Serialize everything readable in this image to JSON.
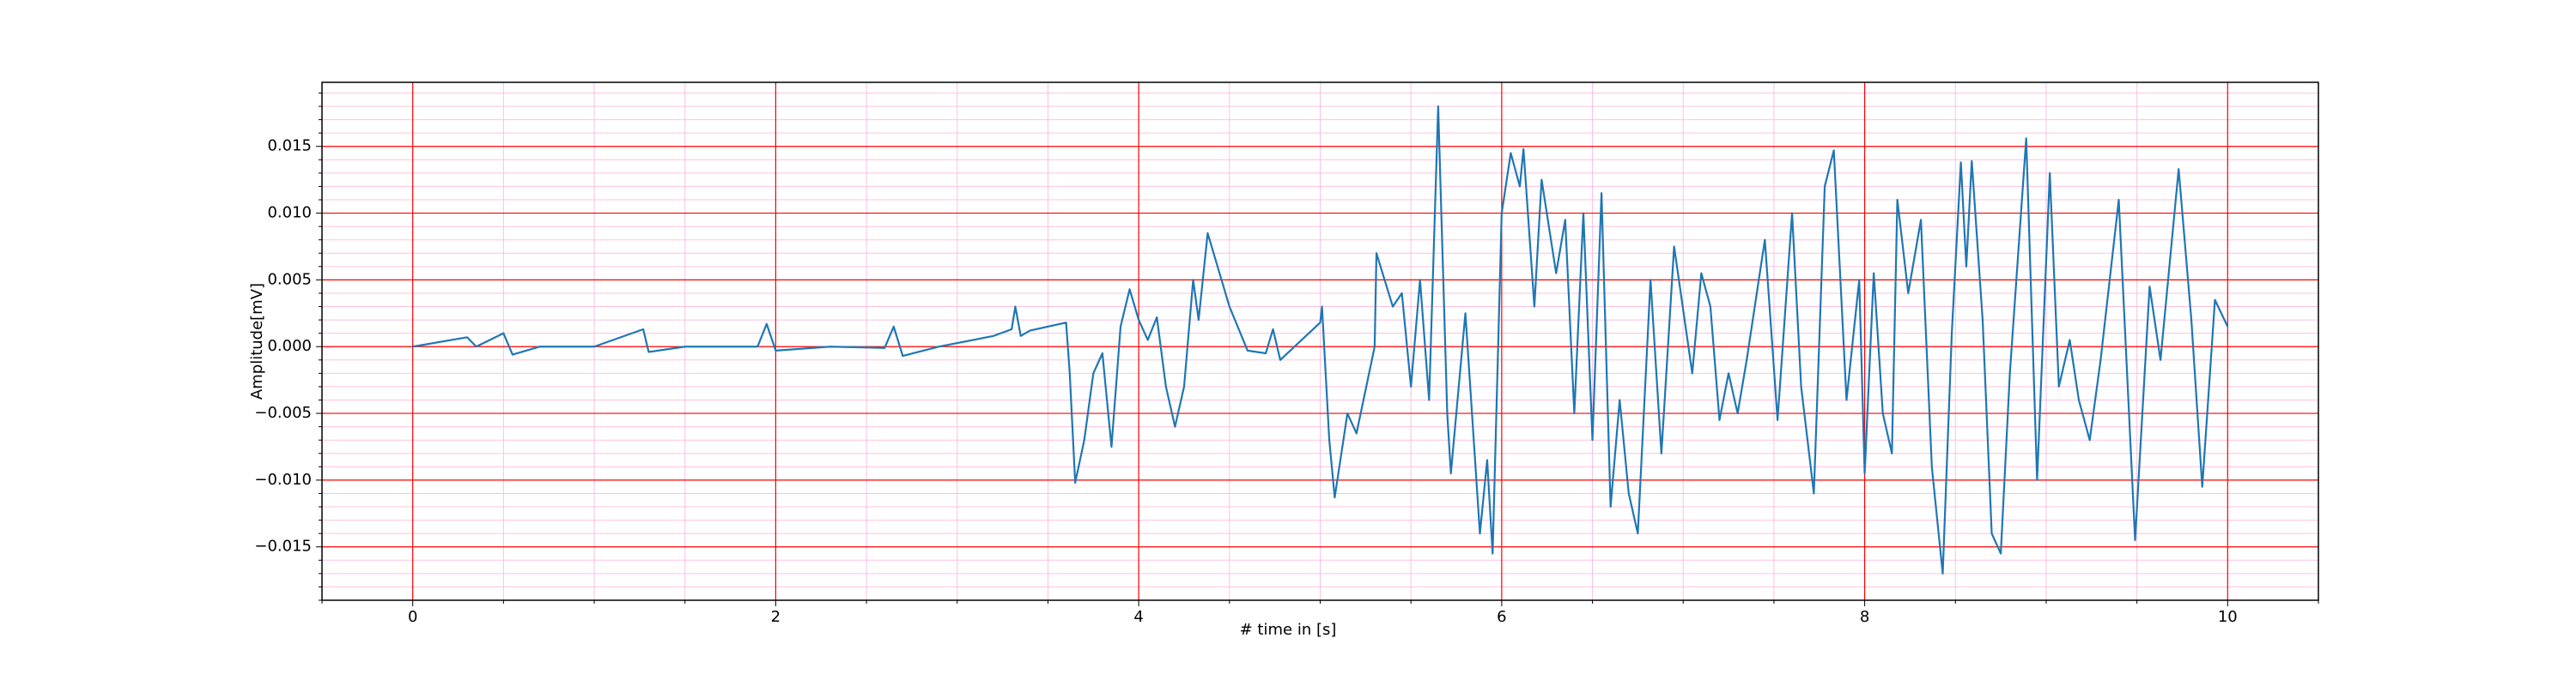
{
  "chart_data": {
    "type": "line",
    "xlabel": "# time in [s]",
    "ylabel": "Amplitude[mV]",
    "xlim": [
      -0.5,
      10.5
    ],
    "ylim": [
      -0.019,
      0.0198
    ],
    "xticks": [
      0,
      2,
      4,
      6,
      8,
      10
    ],
    "yticks": [
      {
        "value": -0.015,
        "label": "−0.015"
      },
      {
        "value": -0.01,
        "label": "−0.010"
      },
      {
        "value": -0.005,
        "label": "−0.005"
      },
      {
        "value": 0,
        "label": "0.000"
      },
      0.005,
      {
        "value": 0.01,
        "label": "0.010"
      },
      0.015
    ],
    "xminorticks": [
      -0.5,
      0.5,
      1,
      1.5,
      2.5,
      3,
      3.5,
      4.5,
      5,
      5.5,
      6.5,
      7,
      7.5,
      8.5,
      9,
      9.5,
      10.5
    ],
    "yminorticks": [
      -0.019,
      -0.018,
      -0.017,
      -0.016,
      -0.014,
      -0.013,
      -0.012,
      -0.011,
      -0.009,
      -0.008,
      -0.007,
      -0.006,
      -0.004,
      -0.003,
      -0.002,
      -0.001,
      0.001,
      0.002,
      0.003,
      0.004,
      0.006,
      0.007,
      0.008,
      0.009,
      0.011,
      0.012,
      0.013,
      0.014,
      0.016,
      0.017,
      0.018,
      0.019
    ],
    "grid": true,
    "grid_color": "#ff0000",
    "minor_grid_color": "#ffc0e0",
    "x": [
      0,
      0.3,
      0.35,
      0.5,
      0.55,
      0.7,
      1.0,
      1.27,
      1.3,
      1.5,
      1.9,
      1.95,
      2.0,
      2.3,
      2.6,
      2.65,
      2.7,
      2.9,
      3.2,
      3.3,
      3.32,
      3.35,
      3.4,
      3.6,
      3.62,
      3.65,
      3.7,
      3.75,
      3.8,
      3.85,
      3.9,
      3.95,
      4.0,
      4.05,
      4.1,
      4.15,
      4.2,
      4.25,
      4.3,
      4.33,
      4.38,
      4.5,
      4.6,
      4.7,
      4.74,
      4.78,
      5.0,
      5.01,
      5.05,
      5.08,
      5.15,
      5.2,
      5.3,
      5.31,
      5.4,
      5.45,
      5.5,
      5.55,
      5.6,
      5.65,
      5.7,
      5.72,
      5.8,
      5.88,
      5.92,
      5.95,
      6.0,
      6.05,
      6.1,
      6.12,
      6.18,
      6.22,
      6.3,
      6.35,
      6.4,
      6.45,
      6.5,
      6.55,
      6.6,
      6.65,
      6.7,
      6.75,
      6.82,
      6.88,
      6.95,
      7.05,
      7.1,
      7.15,
      7.2,
      7.25,
      7.3,
      7.35,
      7.45,
      7.52,
      7.6,
      7.65,
      7.72,
      7.78,
      7.83,
      7.9,
      7.97,
      8.0,
      8.05,
      8.1,
      8.15,
      8.18,
      8.24,
      8.31,
      8.37,
      8.43,
      8.48,
      8.53,
      8.56,
      8.59,
      8.65,
      8.7,
      8.75,
      8.8,
      8.89,
      8.95,
      9.02,
      9.07,
      9.13,
      9.18,
      9.24,
      9.3,
      9.4,
      9.49,
      9.57,
      9.63,
      9.73,
      9.8,
      9.86,
      9.93,
      10.0
    ],
    "series": [
      {
        "color": "#1f77b4",
        "values": [
          0,
          0.0007,
          0,
          0.001,
          -0.0006,
          0,
          0,
          0.0013,
          -0.0004,
          0,
          0,
          0.0017,
          -0.0003,
          0,
          -0.0001,
          0.0015,
          -0.0007,
          0,
          0.0008,
          0.0013,
          0.003,
          0.0008,
          0.0012,
          0.0018,
          -0.002,
          -0.0102,
          -0.007,
          -0.002,
          -0.0005,
          -0.0075,
          0.0015,
          0.0043,
          0.002,
          0.0005,
          0.0022,
          -0.003,
          -0.006,
          -0.003,
          0.005,
          0.002,
          0.0085,
          0.003,
          -0.0003,
          -0.0005,
          0.0013,
          -0.001,
          0.0018,
          0.003,
          -0.007,
          -0.0113,
          -0.005,
          -0.0065,
          0,
          0.007,
          0.003,
          0.004,
          -0.003,
          0.005,
          -0.004,
          0.018,
          -0.005,
          -0.0095,
          0.0025,
          -0.014,
          -0.0085,
          -0.0155,
          0.01,
          0.0145,
          0.012,
          0.0148,
          0.003,
          0.0125,
          0.0055,
          0.0095,
          -0.005,
          0.01,
          -0.007,
          0.0115,
          -0.012,
          -0.004,
          -0.011,
          -0.014,
          0.005,
          -0.008,
          0.0075,
          -0.002,
          0.0055,
          0.003,
          -0.0055,
          -0.002,
          -0.005,
          -0.001,
          0.008,
          -0.0055,
          0.01,
          -0.003,
          -0.011,
          0.012,
          0.0147,
          -0.004,
          0.005,
          -0.0095,
          0.0055,
          -0.005,
          -0.008,
          0.011,
          0.004,
          0.0095,
          -0.009,
          -0.017,
          0.001,
          0.0138,
          0.006,
          0.0139,
          0.002,
          -0.014,
          -0.0155,
          -0.002,
          0.0156,
          -0.01,
          0.013,
          -0.003,
          0.0005,
          -0.004,
          -0.007,
          -0.001,
          0.011,
          -0.0145,
          0.0045,
          -0.001,
          0.0133,
          0.002,
          -0.0105,
          0.0035,
          0.0015
        ]
      }
    ]
  }
}
